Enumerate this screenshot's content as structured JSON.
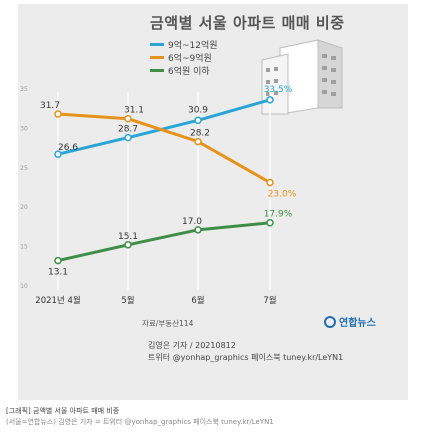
{
  "chart_data": {
    "type": "line",
    "title": "금액별 서울 아파트 매매 비중",
    "categories": [
      "2021년 4월",
      "5월",
      "6월",
      "7월"
    ],
    "series": [
      {
        "name": "9억~12억원",
        "color": "#2aa6d6",
        "values": [
          26.6,
          28.7,
          30.9,
          33.5
        ]
      },
      {
        "name": "6억~9억원",
        "color": "#e8921a",
        "values": [
          31.7,
          31.1,
          28.2,
          23.0
        ]
      },
      {
        "name": "6억원 이하",
        "color": "#3e8f45",
        "values": [
          13.1,
          15.1,
          17.0,
          17.9
        ]
      }
    ],
    "data_labels": [
      [
        "26.6",
        "28.7",
        "30.9",
        "33.5%"
      ],
      [
        "31.7",
        "31.1",
        "28.2",
        "23.0%"
      ],
      [
        "13.1",
        "15.1",
        "17.0",
        "17.9%"
      ]
    ],
    "y_ticks": [
      "35",
      "30",
      "25",
      "20",
      "15",
      "10"
    ],
    "ylim": [
      10,
      35
    ],
    "grid": false,
    "legend_position": "top-left"
  },
  "source": "자료/부동산114",
  "brand": "연합뉴스",
  "credit": {
    "line1": "김영은 기자 / 20210812",
    "line2": "트위터 @yonhap_graphics 페이스북 tuney.kr/LeYN1"
  },
  "caption": {
    "line1": "[그래픽] 금액별 서울 아파트 매매 비중",
    "line2": "(서울=연합뉴스) 김영은 기자 = 트위터 @yonhap_graphics 페이스북 tuney.kr/LeYN1"
  }
}
